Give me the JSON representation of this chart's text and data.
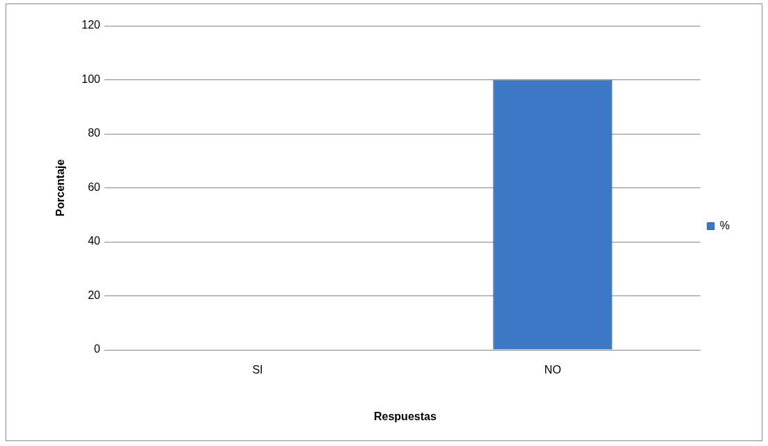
{
  "chart_data": {
    "type": "bar",
    "xlabel": "Respuestas",
    "ylabel": "Porcentaje",
    "categories": [
      "SI",
      "NO"
    ],
    "series": [
      {
        "name": "%",
        "color": "#3d78c6",
        "values": [
          0,
          100
        ]
      }
    ],
    "ylim": [
      0,
      120
    ],
    "yticks": [
      0,
      20,
      40,
      60,
      80,
      100,
      120
    ],
    "grid": "y",
    "legend": "right"
  }
}
